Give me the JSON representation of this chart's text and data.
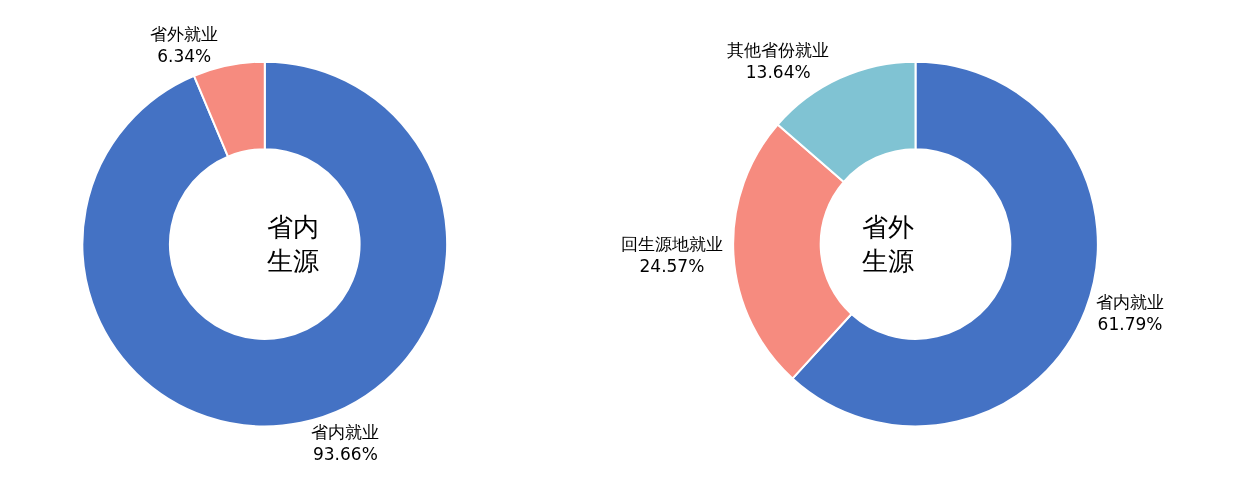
{
  "chart_data": [
    {
      "type": "donut",
      "title": "省内生源",
      "categories": [
        "省内就业",
        "省外就业"
      ],
      "values": [
        93.66,
        6.34
      ],
      "value_labels": [
        "93.66%",
        "6.34%"
      ],
      "colors": [
        "#4472c4",
        "#f68b7f"
      ]
    },
    {
      "type": "donut",
      "title": "省外生源",
      "categories": [
        "省内就业",
        "回生源地就业",
        "其他省份就业"
      ],
      "values": [
        61.79,
        24.57,
        13.64
      ],
      "value_labels": [
        "61.79%",
        "24.57%",
        "13.64%"
      ],
      "colors": [
        "#4472c4",
        "#f68b7f",
        "#80c3d3"
      ]
    }
  ]
}
